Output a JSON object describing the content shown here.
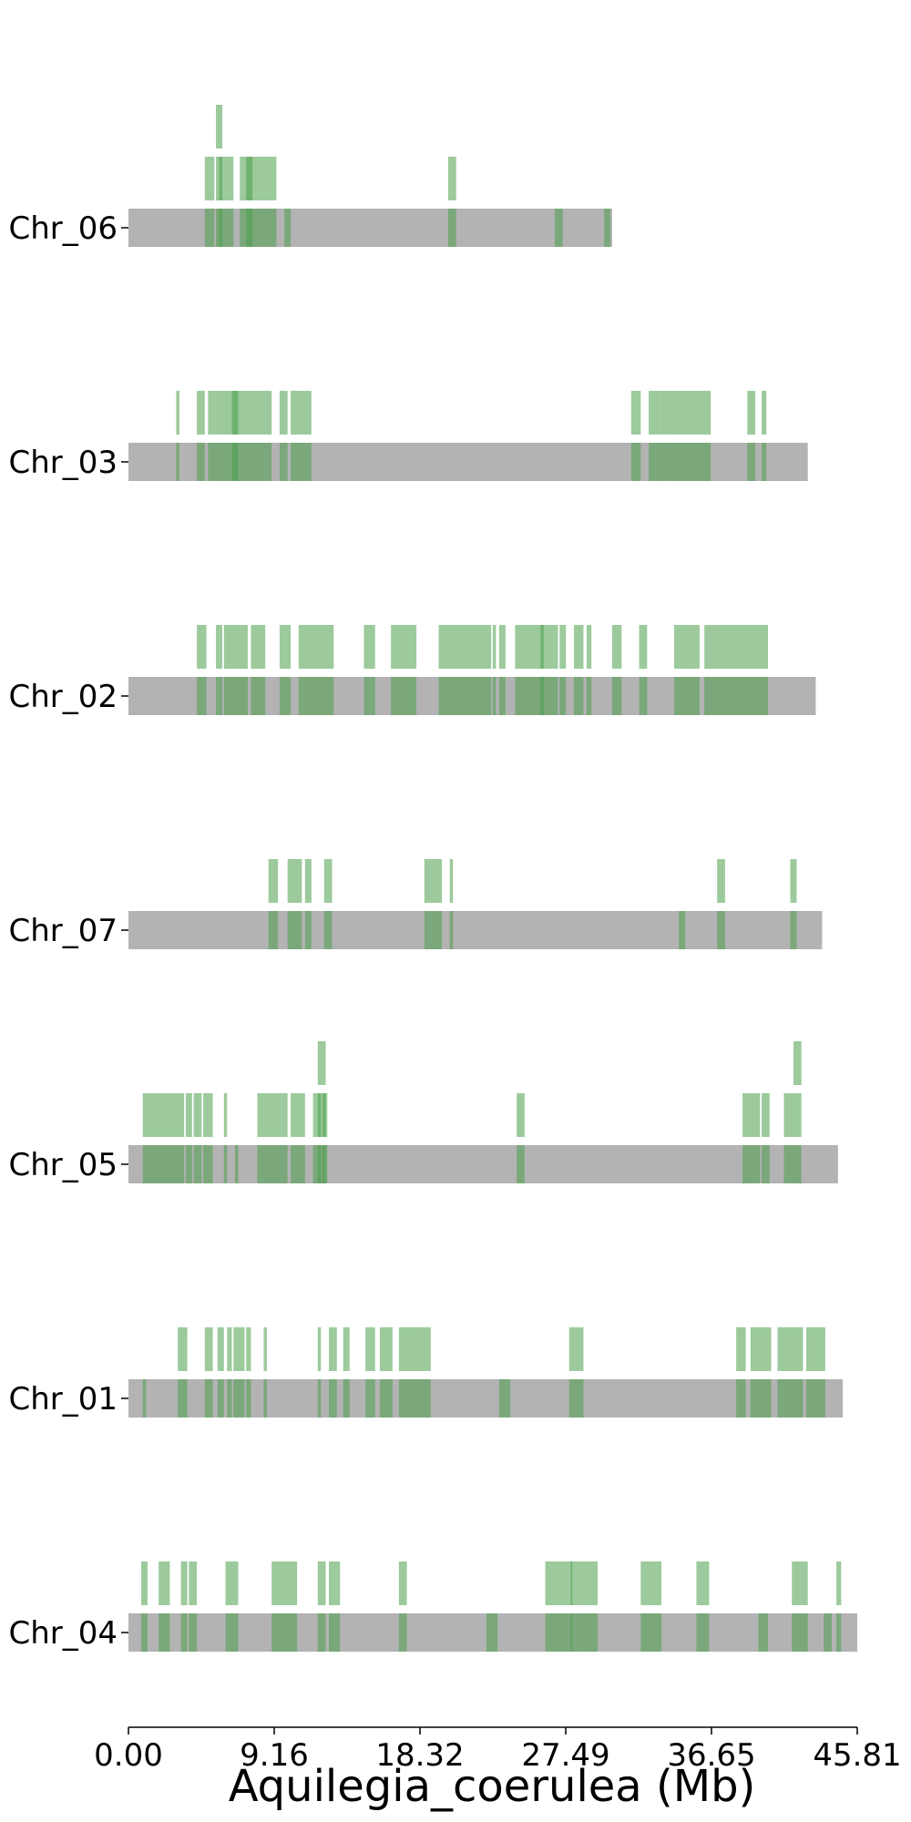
{
  "chart_data": {
    "type": "chromosome-segment-plot",
    "title": "",
    "xlabel": "Aquilegia_coerulea (Mb)",
    "ylabel": "",
    "xlim": [
      0,
      45.81
    ],
    "x_ticks": [
      "0.00",
      "9.16",
      "18.32",
      "27.49",
      "36.65",
      "45.81"
    ],
    "colors": {
      "chromosome": "#b3b3b3",
      "segment": "#4a9e4a",
      "axis": "#000000"
    },
    "chromosomes": [
      {
        "name": "Chr_06",
        "length": 30.4,
        "segments": [
          {
            "start": 4.8,
            "end": 5.4,
            "level": 2
          },
          {
            "start": 5.5,
            "end": 5.9,
            "level": 3
          },
          {
            "start": 5.7,
            "end": 6.2,
            "level": 2
          },
          {
            "start": 6.2,
            "end": 6.6,
            "level": 2
          },
          {
            "start": 7.0,
            "end": 9.3,
            "level": 2
          },
          {
            "start": 7.4,
            "end": 7.8,
            "level": 2
          },
          {
            "start": 9.8,
            "end": 10.2,
            "level": 1
          },
          {
            "start": 20.1,
            "end": 20.6,
            "level": 2
          },
          {
            "start": 26.8,
            "end": 27.3,
            "level": 1
          },
          {
            "start": 29.9,
            "end": 30.3,
            "level": 1
          }
        ]
      },
      {
        "name": "Chr_03",
        "length": 42.7,
        "segments": [
          {
            "start": 3.0,
            "end": 3.2,
            "level": 2
          },
          {
            "start": 4.3,
            "end": 4.8,
            "level": 2
          },
          {
            "start": 5.0,
            "end": 9.0,
            "level": 2
          },
          {
            "start": 6.5,
            "end": 6.9,
            "level": 2
          },
          {
            "start": 9.5,
            "end": 10.0,
            "level": 2
          },
          {
            "start": 10.2,
            "end": 11.5,
            "level": 2
          },
          {
            "start": 31.6,
            "end": 32.2,
            "level": 2
          },
          {
            "start": 32.7,
            "end": 33.4,
            "level": 2
          },
          {
            "start": 33.4,
            "end": 34.0,
            "level": 2
          },
          {
            "start": 34.0,
            "end": 36.6,
            "level": 2
          },
          {
            "start": 38.9,
            "end": 39.4,
            "level": 2
          },
          {
            "start": 39.8,
            "end": 40.1,
            "level": 2
          }
        ]
      },
      {
        "name": "Chr_02",
        "length": 43.2,
        "segments": [
          {
            "start": 4.3,
            "end": 4.9,
            "level": 2
          },
          {
            "start": 5.5,
            "end": 5.9,
            "level": 2
          },
          {
            "start": 6.0,
            "end": 7.5,
            "level": 2
          },
          {
            "start": 7.7,
            "end": 8.6,
            "level": 2
          },
          {
            "start": 9.5,
            "end": 10.2,
            "level": 2
          },
          {
            "start": 10.7,
            "end": 12.9,
            "level": 2
          },
          {
            "start": 14.8,
            "end": 15.5,
            "level": 2
          },
          {
            "start": 16.5,
            "end": 18.1,
            "level": 2
          },
          {
            "start": 19.5,
            "end": 22.8,
            "level": 2
          },
          {
            "start": 22.9,
            "end": 23.1,
            "level": 2
          },
          {
            "start": 23.3,
            "end": 23.7,
            "level": 2
          },
          {
            "start": 24.3,
            "end": 25.2,
            "level": 2
          },
          {
            "start": 25.2,
            "end": 26.1,
            "level": 2
          },
          {
            "start": 25.9,
            "end": 27.0,
            "level": 2
          },
          {
            "start": 27.1,
            "end": 27.5,
            "level": 2
          },
          {
            "start": 28.0,
            "end": 28.6,
            "level": 2
          },
          {
            "start": 28.8,
            "end": 29.1,
            "level": 2
          },
          {
            "start": 30.4,
            "end": 31.0,
            "level": 2
          },
          {
            "start": 32.1,
            "end": 32.6,
            "level": 2
          },
          {
            "start": 34.3,
            "end": 35.6,
            "level": 2
          },
          {
            "start": 35.6,
            "end": 35.9,
            "level": 2
          },
          {
            "start": 36.2,
            "end": 37.0,
            "level": 2
          },
          {
            "start": 37.0,
            "end": 40.2,
            "level": 2
          }
        ]
      },
      {
        "name": "Chr_07",
        "length": 43.6,
        "segments": [
          {
            "start": 8.8,
            "end": 9.4,
            "level": 2
          },
          {
            "start": 10.0,
            "end": 10.9,
            "level": 2
          },
          {
            "start": 11.1,
            "end": 11.5,
            "level": 2
          },
          {
            "start": 12.3,
            "end": 12.8,
            "level": 2
          },
          {
            "start": 18.6,
            "end": 19.7,
            "level": 2
          },
          {
            "start": 20.2,
            "end": 20.4,
            "level": 2
          },
          {
            "start": 34.6,
            "end": 35.0,
            "level": 1
          },
          {
            "start": 37.0,
            "end": 37.5,
            "level": 2
          },
          {
            "start": 41.6,
            "end": 42.0,
            "level": 2
          }
        ]
      },
      {
        "name": "Chr_05",
        "length": 44.6,
        "segments": [
          {
            "start": 0.9,
            "end": 3.5,
            "level": 2
          },
          {
            "start": 3.6,
            "end": 4.0,
            "level": 2
          },
          {
            "start": 4.1,
            "end": 4.6,
            "level": 2
          },
          {
            "start": 4.7,
            "end": 5.3,
            "level": 2
          },
          {
            "start": 6.0,
            "end": 6.2,
            "level": 2
          },
          {
            "start": 6.7,
            "end": 6.9,
            "level": 1
          },
          {
            "start": 8.1,
            "end": 9.6,
            "level": 2
          },
          {
            "start": 9.6,
            "end": 10.0,
            "level": 2
          },
          {
            "start": 10.2,
            "end": 11.1,
            "level": 2
          },
          {
            "start": 11.6,
            "end": 12.1,
            "level": 2
          },
          {
            "start": 11.9,
            "end": 12.4,
            "level": 3
          },
          {
            "start": 12.2,
            "end": 12.5,
            "level": 2
          },
          {
            "start": 24.4,
            "end": 24.9,
            "level": 2
          },
          {
            "start": 38.6,
            "end": 39.4,
            "level": 2
          },
          {
            "start": 39.4,
            "end": 39.7,
            "level": 2
          },
          {
            "start": 39.8,
            "end": 40.3,
            "level": 2
          },
          {
            "start": 41.2,
            "end": 41.8,
            "level": 2
          },
          {
            "start": 41.8,
            "end": 42.3,
            "level": 3
          }
        ]
      },
      {
        "name": "Chr_01",
        "length": 44.9,
        "segments": [
          {
            "start": 0.9,
            "end": 1.1,
            "level": 1
          },
          {
            "start": 3.1,
            "end": 3.7,
            "level": 2
          },
          {
            "start": 4.8,
            "end": 5.3,
            "level": 2
          },
          {
            "start": 5.6,
            "end": 6.0,
            "level": 2
          },
          {
            "start": 6.2,
            "end": 6.5,
            "level": 2
          },
          {
            "start": 6.6,
            "end": 6.9,
            "level": 2
          },
          {
            "start": 6.9,
            "end": 7.3,
            "level": 2
          },
          {
            "start": 7.4,
            "end": 7.7,
            "level": 2
          },
          {
            "start": 8.5,
            "end": 8.7,
            "level": 2
          },
          {
            "start": 11.9,
            "end": 12.1,
            "level": 2
          },
          {
            "start": 12.6,
            "end": 12.9,
            "level": 2
          },
          {
            "start": 12.9,
            "end": 13.1,
            "level": 2
          },
          {
            "start": 13.5,
            "end": 13.9,
            "level": 2
          },
          {
            "start": 14.9,
            "end": 15.5,
            "level": 2
          },
          {
            "start": 15.8,
            "end": 16.6,
            "level": 2
          },
          {
            "start": 17.0,
            "end": 17.8,
            "level": 2
          },
          {
            "start": 17.8,
            "end": 18.4,
            "level": 2
          },
          {
            "start": 18.4,
            "end": 19.0,
            "level": 2
          },
          {
            "start": 23.3,
            "end": 24.0,
            "level": 1
          },
          {
            "start": 27.7,
            "end": 28.6,
            "level": 2
          },
          {
            "start": 38.2,
            "end": 38.8,
            "level": 2
          },
          {
            "start": 39.1,
            "end": 40.4,
            "level": 2
          },
          {
            "start": 40.8,
            "end": 41.4,
            "level": 2
          },
          {
            "start": 41.4,
            "end": 41.8,
            "level": 2
          },
          {
            "start": 41.8,
            "end": 42.4,
            "level": 2
          },
          {
            "start": 42.6,
            "end": 43.1,
            "level": 2
          },
          {
            "start": 43.1,
            "end": 43.8,
            "level": 2
          }
        ]
      },
      {
        "name": "Chr_04",
        "length": 45.81,
        "segments": [
          {
            "start": 0.8,
            "end": 1.2,
            "level": 2
          },
          {
            "start": 1.9,
            "end": 2.6,
            "level": 2
          },
          {
            "start": 3.3,
            "end": 3.7,
            "level": 2
          },
          {
            "start": 3.8,
            "end": 4.3,
            "level": 2
          },
          {
            "start": 6.1,
            "end": 6.9,
            "level": 2
          },
          {
            "start": 9.0,
            "end": 10.6,
            "level": 2
          },
          {
            "start": 11.9,
            "end": 12.4,
            "level": 2
          },
          {
            "start": 12.6,
            "end": 13.3,
            "level": 2
          },
          {
            "start": 17.0,
            "end": 17.5,
            "level": 2
          },
          {
            "start": 22.5,
            "end": 23.2,
            "level": 1
          },
          {
            "start": 26.2,
            "end": 27.9,
            "level": 2
          },
          {
            "start": 27.8,
            "end": 28.3,
            "level": 2
          },
          {
            "start": 28.3,
            "end": 29.5,
            "level": 2
          },
          {
            "start": 32.2,
            "end": 33.5,
            "level": 2
          },
          {
            "start": 35.7,
            "end": 36.5,
            "level": 2
          },
          {
            "start": 39.6,
            "end": 40.2,
            "level": 1
          },
          {
            "start": 41.7,
            "end": 42.3,
            "level": 2
          },
          {
            "start": 42.3,
            "end": 42.7,
            "level": 2
          },
          {
            "start": 43.7,
            "end": 44.2,
            "level": 1
          },
          {
            "start": 44.5,
            "end": 44.8,
            "level": 2
          }
        ]
      }
    ]
  }
}
